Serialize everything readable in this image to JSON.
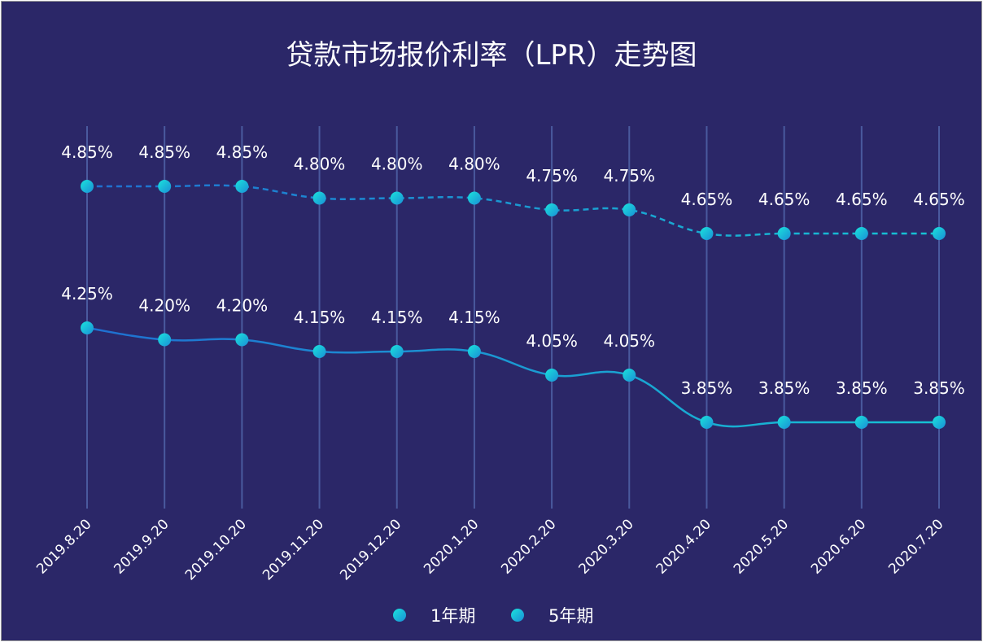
{
  "chart_data": {
    "type": "line",
    "title": "贷款市场报价利率（LPR）走势图",
    "categories": [
      "2019.8.20",
      "2019.9.20",
      "2019.10.20",
      "2019.11.20",
      "2019.12.20",
      "2020.1.20",
      "2020.2.20",
      "2020.3.20",
      "2020.4.20",
      "2020.5.20",
      "2020.6.20",
      "2020.7.20"
    ],
    "series": [
      {
        "name": "1年期",
        "values": [
          4.25,
          4.2,
          4.2,
          4.15,
          4.15,
          4.15,
          4.05,
          4.05,
          3.85,
          3.85,
          3.85,
          3.85
        ],
        "labels": [
          "4.25%",
          "4.20%",
          "4.20%",
          "4.15%",
          "4.15%",
          "4.15%",
          "4.05%",
          "4.05%",
          "3.85%",
          "3.85%",
          "3.85%",
          "3.85%"
        ],
        "style": "solid"
      },
      {
        "name": "5年期",
        "values": [
          4.85,
          4.85,
          4.85,
          4.8,
          4.8,
          4.8,
          4.75,
          4.75,
          4.65,
          4.65,
          4.65,
          4.65
        ],
        "labels": [
          "4.85%",
          "4.85%",
          "4.85%",
          "4.80%",
          "4.80%",
          "4.80%",
          "4.75%",
          "4.75%",
          "4.65%",
          "4.65%",
          "4.65%",
          "4.65%"
        ],
        "style": "dashed"
      }
    ],
    "xlabel": "",
    "ylabel": "",
    "ylim": [
      3.45,
      4.95
    ],
    "grid": "vertical",
    "legend": "bottom-center",
    "colors": {
      "background": "#2b2768",
      "border": "#9a9a9a",
      "gridline": "#4a5a9e",
      "line_start": "#1f6fd1",
      "line_end": "#16c3d3",
      "marker_light": "#1ae3dc",
      "marker_dark": "#1a8fd6",
      "text": "#ffffff"
    }
  }
}
